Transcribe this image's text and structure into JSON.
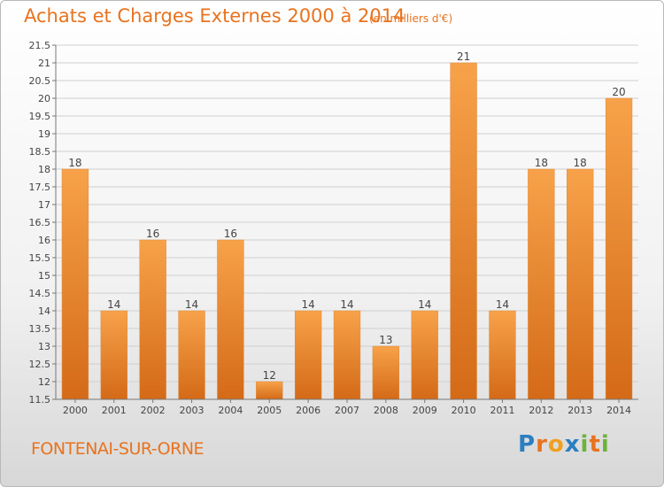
{
  "title": "Achats et Charges Externes 2000 à 2014",
  "unit_note": "(en milliers d'€)",
  "commune": "FONTENAI-SUR-ORNE",
  "brand": {
    "letters": [
      "P",
      "r",
      "o",
      "x",
      "i",
      "t",
      "i"
    ],
    "colors": [
      "#2a7fc1",
      "#e8731e",
      "#f0a020",
      "#2a7fc1",
      "#6cb33e",
      "#e8731e",
      "#6cb33e"
    ]
  },
  "chart_data": {
    "type": "bar",
    "categories": [
      "2000",
      "2001",
      "2002",
      "2003",
      "2004",
      "2005",
      "2006",
      "2007",
      "2008",
      "2009",
      "2010",
      "2011",
      "2012",
      "2013",
      "2014"
    ],
    "values": [
      18,
      14,
      16,
      14,
      16,
      12,
      14,
      14,
      13,
      14,
      21,
      14,
      18,
      18,
      20
    ],
    "data_labels": [
      "18",
      "14",
      "16",
      "14",
      "16",
      "12",
      "14",
      "14",
      "13",
      "14",
      "21",
      "14",
      "18",
      "18",
      "20"
    ],
    "yticks": [
      "11.5",
      "12",
      "12.5",
      "13",
      "13.5",
      "14",
      "14.5",
      "15",
      "15.5",
      "16",
      "16.5",
      "17",
      "17.5",
      "18",
      "18.5",
      "19",
      "19.5",
      "20",
      "20.5",
      "21",
      "21.5"
    ],
    "ylim": [
      11.5,
      21.5
    ],
    "grid": true,
    "legend": "none",
    "colors": {
      "bar": "#f0963a",
      "bar_dark": "#d86e1c",
      "grid": "#cfcfcf",
      "label": "#444444"
    }
  }
}
